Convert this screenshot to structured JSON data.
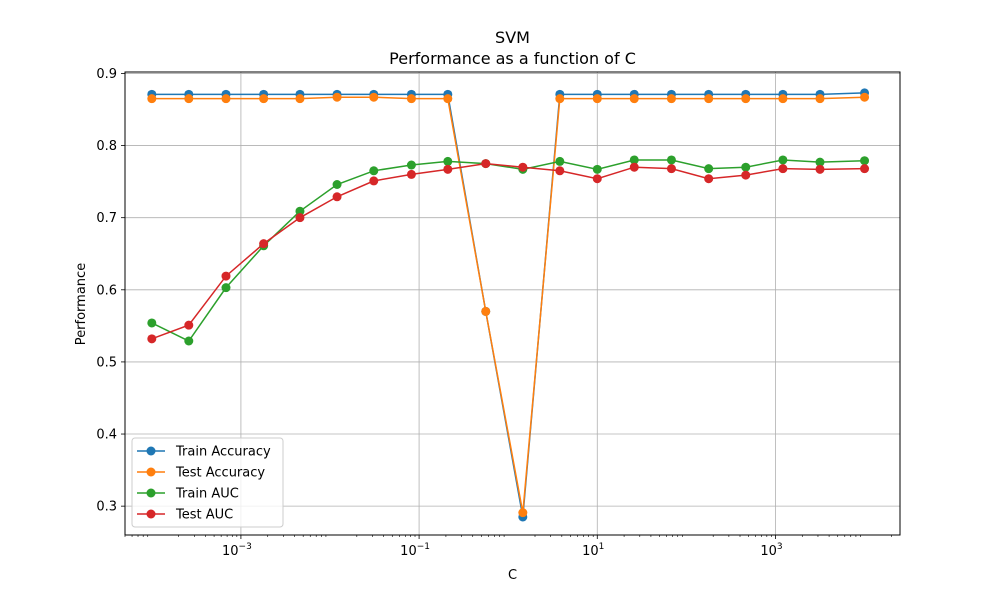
{
  "chart_data": {
    "type": "line",
    "title": "SVM",
    "subtitle": "Performance as a function of C",
    "xlabel": "C",
    "ylabel": "Performance",
    "xscale": "log",
    "xlim": [
      5e-05,
      25000
    ],
    "ylim": [
      0.26,
      0.902
    ],
    "x": [
      0.0001,
      0.00026,
      0.00068,
      0.0018,
      0.0046,
      0.012,
      0.031,
      0.082,
      0.21,
      0.56,
      1.46,
      3.8,
      10,
      26,
      68,
      178,
      464,
      1212,
      3162,
      10000
    ],
    "x_ticks": [
      {
        "value": 0.001,
        "base": "10",
        "exp": "−3"
      },
      {
        "value": 0.1,
        "base": "10",
        "exp": "−1"
      },
      {
        "value": 10,
        "base": "10",
        "exp": "1"
      },
      {
        "value": 1000,
        "base": "10",
        "exp": "3"
      }
    ],
    "y_ticks": [
      "0.3",
      "0.4",
      "0.5",
      "0.6",
      "0.7",
      "0.8",
      "0.9"
    ],
    "grid": true,
    "legend_position": "lower-left",
    "series": [
      {
        "name": "Train Accuracy",
        "color": "#1f77b4",
        "values": [
          0.871,
          0.871,
          0.871,
          0.871,
          0.871,
          0.871,
          0.871,
          0.871,
          0.871,
          0.57,
          0.285,
          0.871,
          0.871,
          0.871,
          0.871,
          0.871,
          0.871,
          0.871,
          0.871,
          0.873
        ]
      },
      {
        "name": "Test Accuracy",
        "color": "#ff7f0e",
        "values": [
          0.865,
          0.865,
          0.865,
          0.865,
          0.865,
          0.867,
          0.867,
          0.865,
          0.865,
          0.57,
          0.291,
          0.865,
          0.865,
          0.865,
          0.865,
          0.865,
          0.865,
          0.865,
          0.865,
          0.867
        ]
      },
      {
        "name": "Train AUC",
        "color": "#2ca02c",
        "values": [
          0.554,
          0.529,
          0.603,
          0.661,
          0.709,
          0.746,
          0.765,
          0.773,
          0.778,
          0.775,
          0.767,
          0.778,
          0.767,
          0.78,
          0.78,
          0.768,
          0.77,
          0.78,
          0.777,
          0.779
        ]
      },
      {
        "name": "Test AUC",
        "color": "#d62728",
        "values": [
          0.532,
          0.551,
          0.619,
          0.664,
          0.7,
          0.729,
          0.751,
          0.76,
          0.767,
          0.775,
          0.77,
          0.765,
          0.754,
          0.77,
          0.768,
          0.754,
          0.759,
          0.768,
          0.767,
          0.768
        ]
      }
    ]
  }
}
